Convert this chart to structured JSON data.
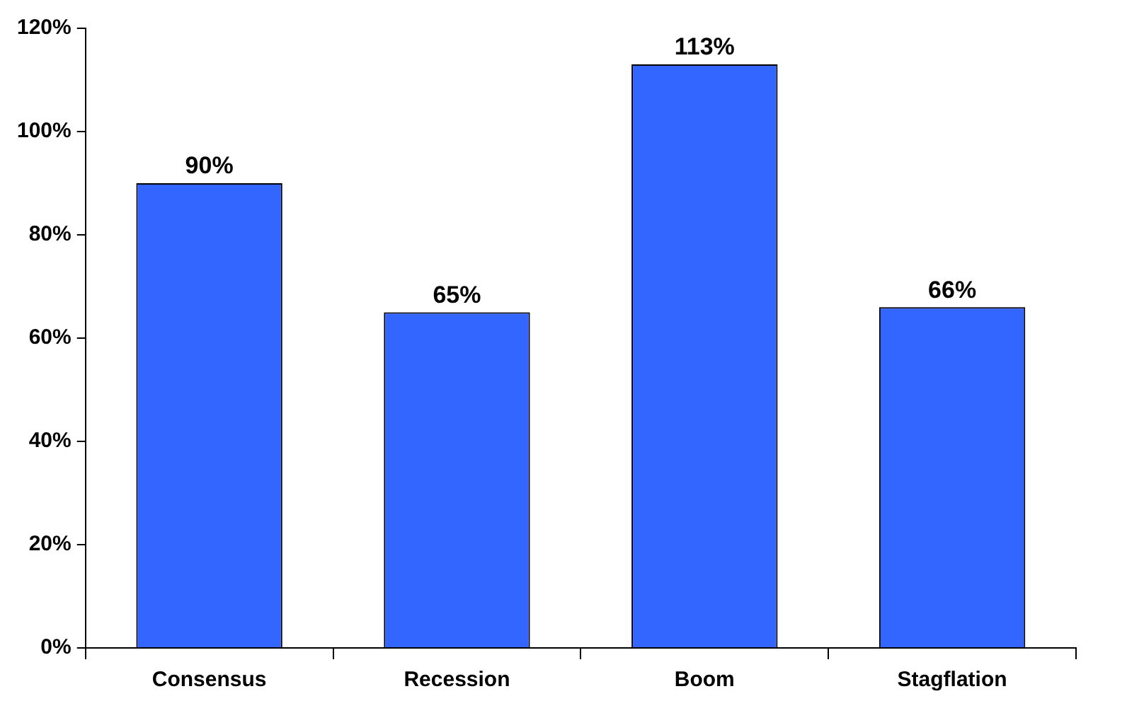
{
  "chart_data": {
    "type": "bar",
    "categories": [
      "Consensus",
      "Recession",
      "Boom",
      "Stagflation"
    ],
    "values": [
      90,
      65,
      113,
      66
    ],
    "color": "#3366ff",
    "value_labels": [
      "90%",
      "65%",
      "113%",
      "66%"
    ],
    "ylim": [
      0,
      120
    ],
    "yticks": [
      {
        "value": 0,
        "label": "0%"
      },
      {
        "value": 20,
        "label": "20%"
      },
      {
        "value": 40,
        "label": "40%"
      },
      {
        "value": 60,
        "label": "60%"
      },
      {
        "value": 80,
        "label": "80%"
      },
      {
        "value": 100,
        "label": "100%"
      },
      {
        "value": 120,
        "label": "120%"
      }
    ],
    "grid": false,
    "legend": false
  }
}
